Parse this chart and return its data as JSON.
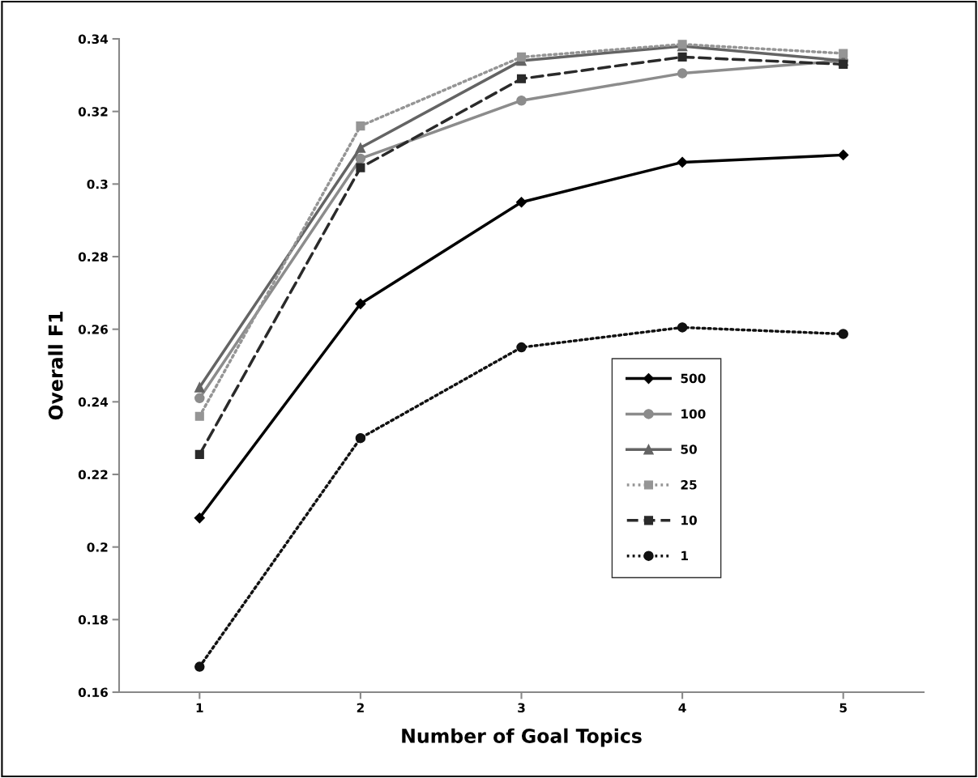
{
  "chart_data": {
    "type": "line",
    "xlabel": "Number of Goal Topics",
    "ylabel": "Overall F1",
    "categories": [
      "1",
      "2",
      "3",
      "4",
      "5"
    ],
    "ylim": [
      0.16,
      0.34
    ],
    "yticks": [
      0.16,
      0.18,
      0.2,
      0.22,
      0.24,
      0.26,
      0.28,
      0.3,
      0.32,
      0.34
    ],
    "grid": false,
    "legend": "right",
    "series": [
      {
        "name": "500",
        "color": "#000000",
        "marker": "diamond",
        "line_style": "solid",
        "values": [
          0.208,
          0.267,
          0.295,
          0.306,
          0.308
        ]
      },
      {
        "name": "100",
        "color": "#8c8c8c",
        "marker": "circle",
        "line_style": "solid",
        "values": [
          0.241,
          0.307,
          0.323,
          0.3305,
          0.334
        ]
      },
      {
        "name": "50",
        "color": "#646464",
        "marker": "triangle",
        "line_style": "solid",
        "values": [
          0.244,
          0.31,
          0.334,
          0.338,
          0.334
        ]
      },
      {
        "name": "25",
        "color": "#959595",
        "marker": "square",
        "line_style": "dotted",
        "values": [
          0.236,
          0.316,
          0.335,
          0.3385,
          0.336
        ]
      },
      {
        "name": "10",
        "color": "#2a2a2a",
        "marker": "square",
        "line_style": "dashed",
        "values": [
          0.2255,
          0.3045,
          0.329,
          0.335,
          0.333
        ]
      },
      {
        "name": "1",
        "color": "#111111",
        "marker": "circle",
        "line_style": "dotted",
        "values": [
          0.167,
          0.23,
          0.255,
          0.2605,
          0.2587
        ]
      }
    ]
  }
}
